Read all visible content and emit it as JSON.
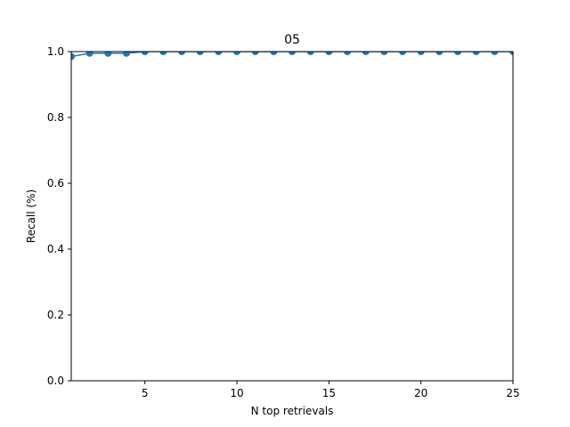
{
  "chart_data": {
    "type": "line",
    "title": "05",
    "xlabel": "N top retrievals",
    "ylabel": "Recall (%)",
    "xlim": [
      1,
      25
    ],
    "ylim": [
      0.0,
      1.0
    ],
    "xticks": [
      "5",
      "10",
      "15",
      "20",
      "25"
    ],
    "yticks": [
      "0.0",
      "0.2",
      "0.4",
      "0.6",
      "0.8",
      "1.0"
    ],
    "grid": false,
    "legend": "none",
    "series_color": "#1f77b4",
    "markers": true,
    "x": [
      1,
      2,
      3,
      4,
      5,
      6,
      7,
      8,
      9,
      10,
      11,
      12,
      13,
      14,
      15,
      16,
      17,
      18,
      19,
      20,
      21,
      22,
      23,
      24,
      25
    ],
    "y": [
      0.985,
      0.995,
      0.995,
      0.995,
      1.0,
      1.0,
      1.0,
      1.0,
      1.0,
      1.0,
      1.0,
      1.0,
      1.0,
      1.0,
      1.0,
      1.0,
      1.0,
      1.0,
      1.0,
      1.0,
      1.0,
      1.0,
      1.0,
      1.0,
      1.0
    ]
  }
}
